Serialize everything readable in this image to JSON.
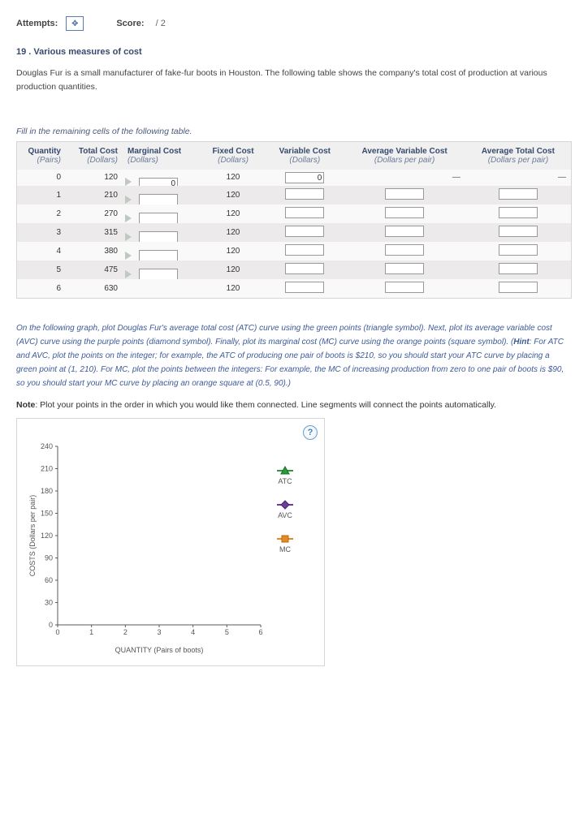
{
  "topbar": {
    "attempts_label": "Attempts:",
    "attempts_icon": "✥",
    "score_label": "Score:",
    "score_value": "/ 2"
  },
  "question": {
    "number": "19",
    "title": "Various measures of cost",
    "intro": "Douglas Fur is a small manufacturer of fake-fur boots in Houston. The following table shows the company's total cost of production at various production quantities."
  },
  "table_instruction": "Fill in the remaining cells of the following table.",
  "table": {
    "headers": [
      {
        "main": "Quantity",
        "sub": "(Pairs)"
      },
      {
        "main": "Total Cost",
        "sub": "(Dollars)"
      },
      {
        "main": "Marginal Cost",
        "sub": "(Dollars)"
      },
      {
        "main": "Fixed Cost",
        "sub": "(Dollars)"
      },
      {
        "main": "Variable Cost",
        "sub": "(Dollars)"
      },
      {
        "main": "Average Variable Cost",
        "sub": "(Dollars per pair)"
      },
      {
        "main": "Average Total Cost",
        "sub": "(Dollars per pair)"
      }
    ],
    "rows": [
      {
        "q": "0",
        "tc": "120",
        "mc_at_mid": "0",
        "fc": "120",
        "vc": "0",
        "avc": "—",
        "atc": "—"
      },
      {
        "q": "1",
        "tc": "210",
        "mc_at_mid": "",
        "fc": "120",
        "vc": "",
        "avc": "",
        "atc": ""
      },
      {
        "q": "2",
        "tc": "270",
        "mc_at_mid": "",
        "fc": "120",
        "vc": "",
        "avc": "",
        "atc": ""
      },
      {
        "q": "3",
        "tc": "315",
        "mc_at_mid": "",
        "fc": "120",
        "vc": "",
        "avc": "",
        "atc": ""
      },
      {
        "q": "4",
        "tc": "380",
        "mc_at_mid": "",
        "fc": "120",
        "vc": "",
        "avc": "",
        "atc": ""
      },
      {
        "q": "5",
        "tc": "475",
        "mc_at_mid": "",
        "fc": "120",
        "vc": "",
        "avc": "",
        "atc": ""
      },
      {
        "q": "6",
        "tc": "630",
        "mc_at_mid": null,
        "fc": "120",
        "vc": "",
        "avc": "",
        "atc": ""
      }
    ]
  },
  "graph_instruction": "On the following graph, plot Douglas Fur's average total cost (ATC) curve using the green points (triangle symbol). Next, plot its average variable cost (AVC) curve using the purple points (diamond symbol). Finally, plot its marginal cost (MC) curve using the orange points (square symbol). (Hint: For ATC and AVC, plot the points on the integer; for example, the ATC of producing one pair of boots is $210, so you should start your ATC curve by placing a green point at (1, 210). For MC, plot the points between the integers: For example, the MC of increasing production from zero to one pair of boots is $90, so you should start your MC curve by placing an orange square at (0.5, 90).)",
  "graph_hint_word": "Hint",
  "note_label": "Note",
  "note_text": ": Plot your points in the order in which you would like them connected. Line segments will connect the points automatically.",
  "chart": {
    "help_icon": "?",
    "x_axis_label": "QUANTITY (Pairs of boots)",
    "y_axis_label": "COSTS (Dollars per pair)",
    "x_ticks": [
      "0",
      "1",
      "2",
      "3",
      "4",
      "5",
      "6"
    ],
    "y_ticks": [
      "0",
      "30",
      "60",
      "90",
      "120",
      "150",
      "180",
      "210",
      "240"
    ],
    "xlim": [
      0,
      6
    ],
    "ylim": [
      0,
      240
    ],
    "background_color": "#ffffff",
    "axis_color": "#5a5a5a",
    "tick_fontsize": 9,
    "label_fontsize": 9,
    "legend": [
      {
        "name": "ATC",
        "label": "ATC",
        "marker": "triangle",
        "color": "#2e9b3a",
        "line_color": "#2e9b3a"
      },
      {
        "name": "AVC",
        "label": "AVC",
        "marker": "diamond",
        "color": "#6a3d9a",
        "line_color": "#6a3d9a"
      },
      {
        "name": "MC",
        "label": "MC",
        "marker": "square",
        "color": "#e68a1f",
        "line_color": "#e68a1f"
      }
    ]
  }
}
